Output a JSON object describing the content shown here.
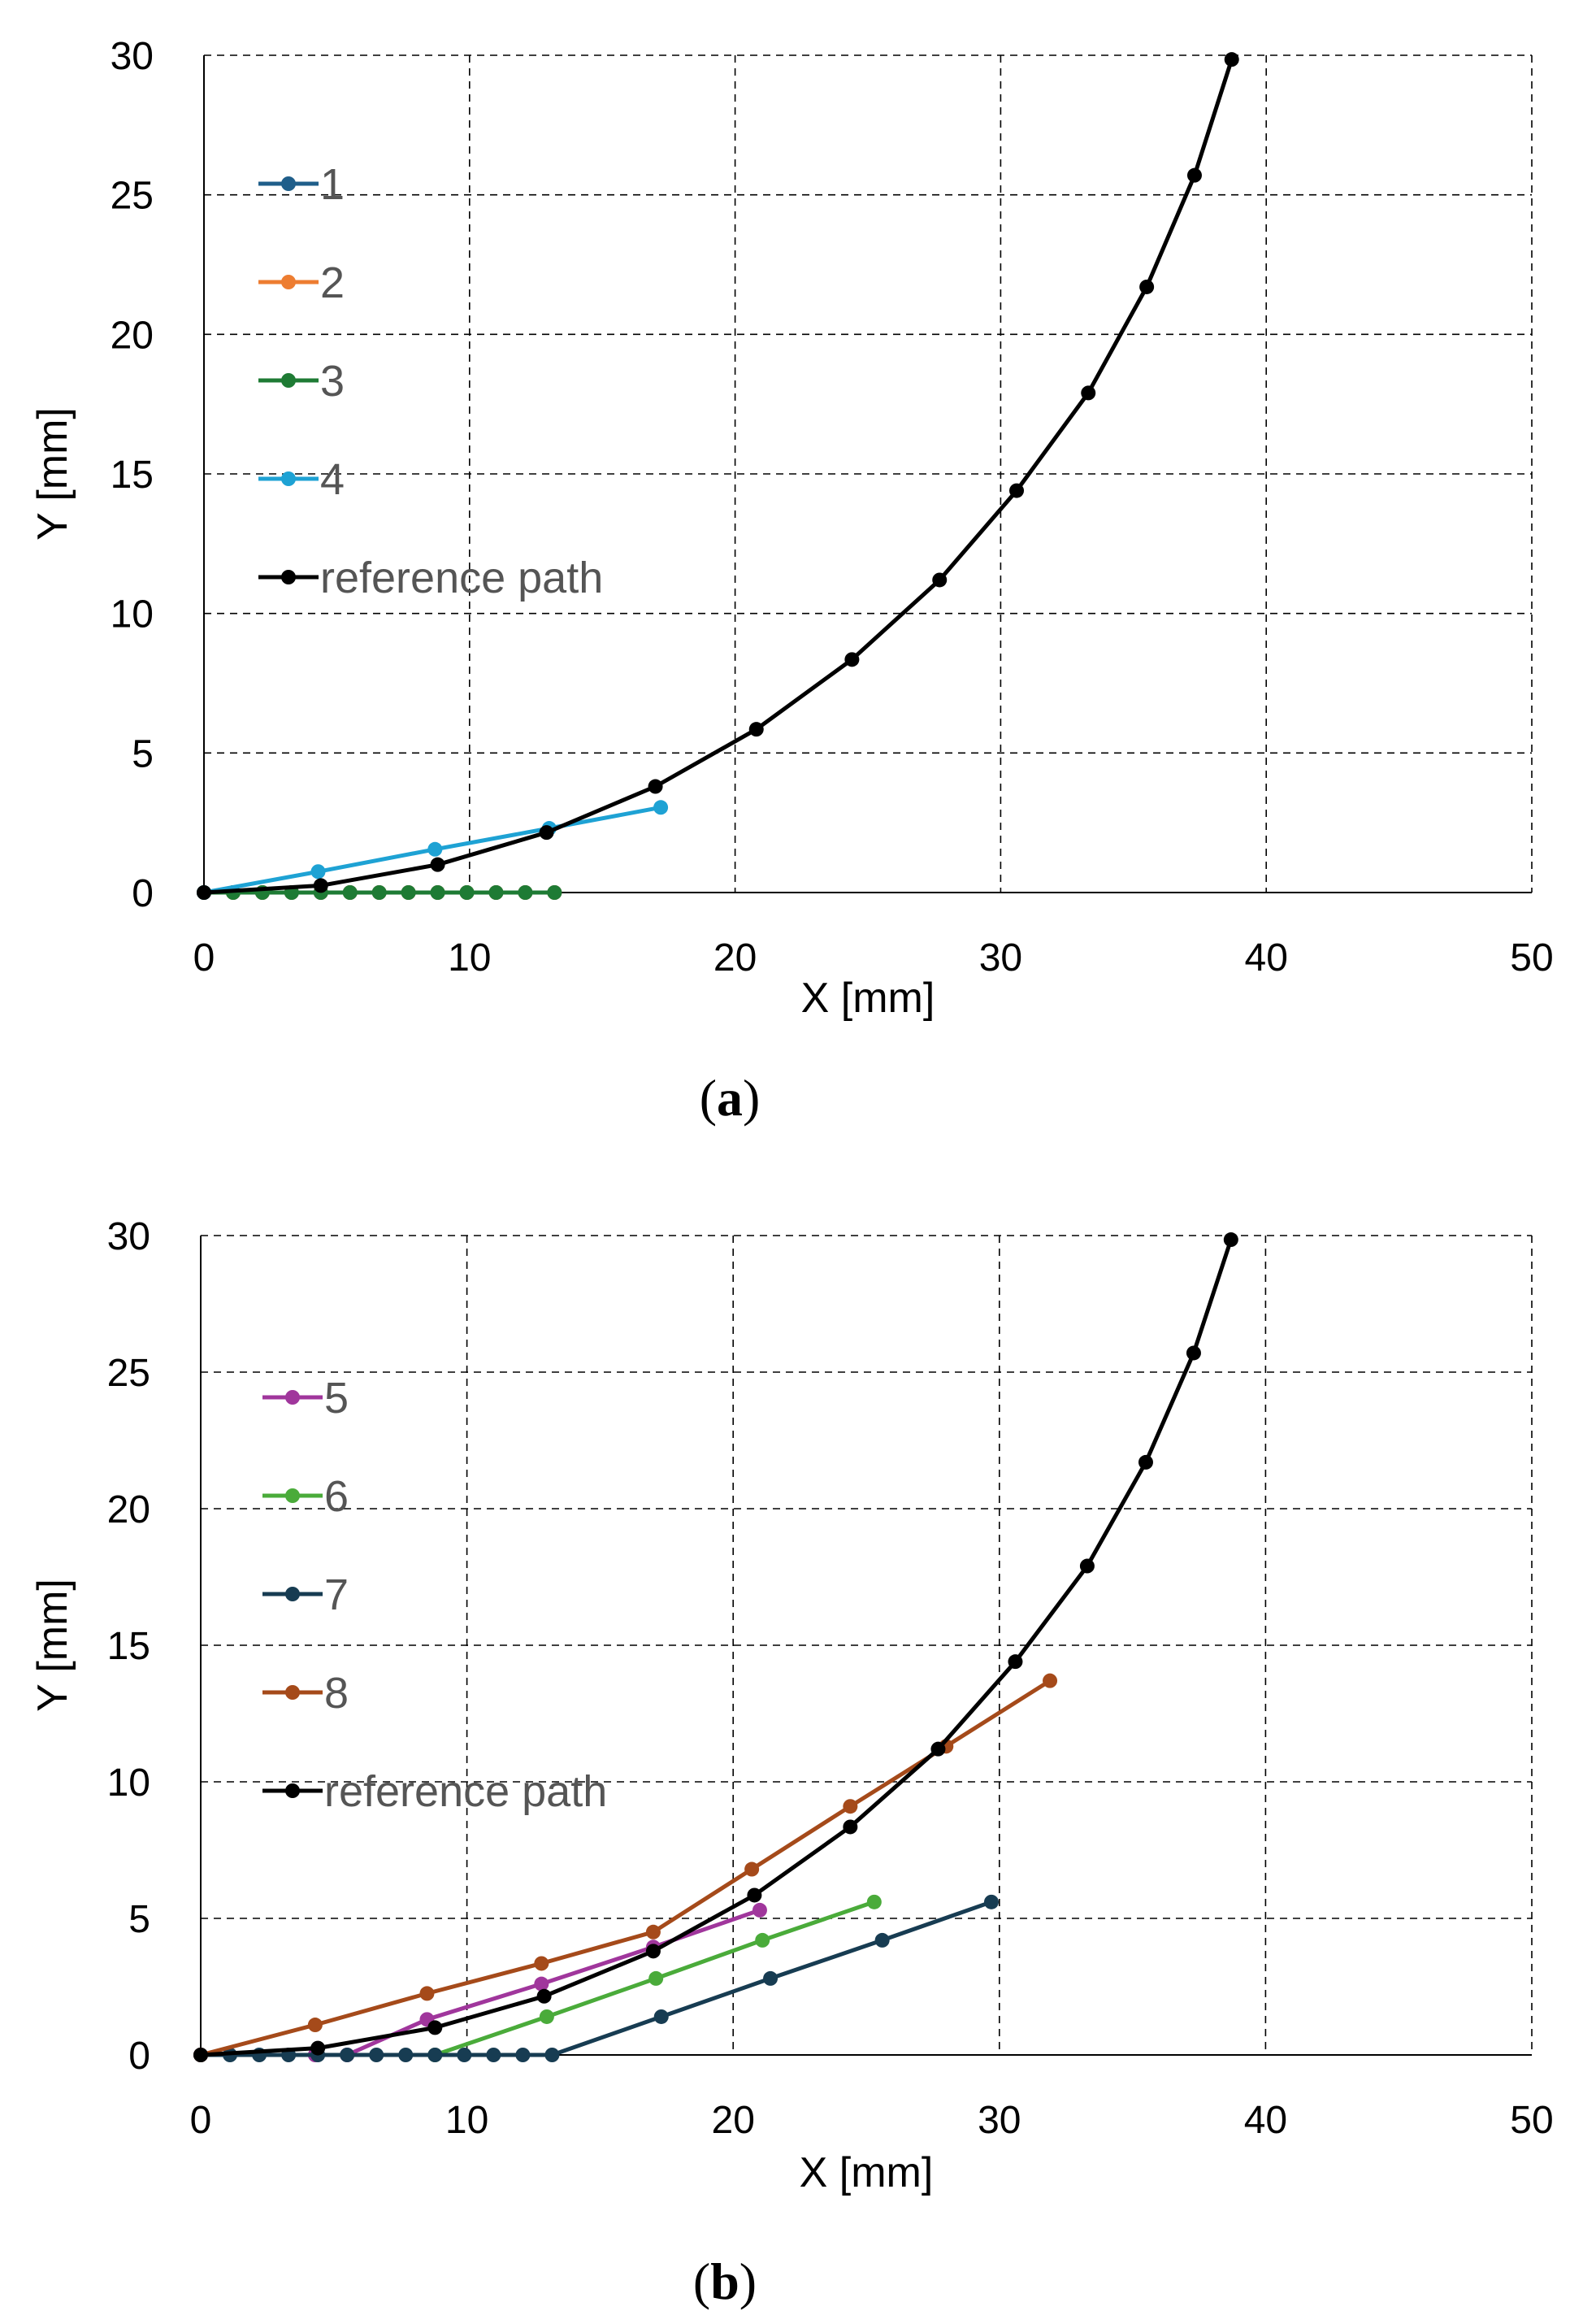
{
  "chart_data": [
    {
      "type": "line",
      "panel": "a",
      "caption": {
        "open": "(",
        "letter": "a",
        "close": ")"
      },
      "xlabel": "X [mm]",
      "ylabel": "Y [mm]",
      "xlim": [
        0,
        50
      ],
      "ylim": [
        0,
        30
      ],
      "xticks": [
        0,
        10,
        20,
        30,
        40,
        50
      ],
      "yticks": [
        0,
        5,
        10,
        15,
        20,
        25,
        30
      ],
      "grid": true,
      "legend_position": "top-left",
      "series": [
        {
          "name": "1",
          "color": "#1f5e8a",
          "x": [
            0,
            1.1,
            2.2,
            3.3,
            4.4,
            5.5,
            6.6,
            7.7,
            8.8,
            9.9,
            11.0,
            12.1,
            13.2
          ],
          "y": [
            0,
            0,
            0,
            0,
            0,
            0,
            0,
            0,
            0,
            0,
            0,
            0,
            0
          ]
        },
        {
          "name": "2",
          "color": "#ed7d31",
          "x": [
            0,
            1.1,
            2.2,
            3.3,
            4.4,
            5.5,
            6.6,
            7.7,
            8.8,
            9.9,
            11.0,
            12.1,
            13.2
          ],
          "y": [
            0,
            0,
            0,
            0,
            0,
            0,
            0,
            0,
            0,
            0,
            0,
            0,
            0
          ]
        },
        {
          "name": "3",
          "color": "#1e7b34",
          "x": [
            0,
            1.1,
            2.2,
            3.3,
            4.4,
            5.5,
            6.6,
            7.7,
            8.8,
            9.9,
            11.0,
            12.1,
            13.2
          ],
          "y": [
            0,
            0,
            0,
            0,
            0,
            0,
            0,
            0,
            0,
            0,
            0,
            0,
            0
          ]
        },
        {
          "name": "4",
          "color": "#1ea2d4",
          "x": [
            0,
            4.3,
            8.7,
            13.0,
            17.2
          ],
          "y": [
            0,
            0.75,
            1.55,
            2.3,
            3.05
          ]
        },
        {
          "name": "reference path",
          "color": "#000000",
          "x": [
            0,
            4.4,
            8.8,
            12.9,
            17.0,
            20.8,
            24.4,
            27.7,
            30.6,
            33.3,
            35.5,
            37.3,
            38.7
          ],
          "y": [
            0,
            0.25,
            1.0,
            2.15,
            3.8,
            5.85,
            8.35,
            11.2,
            14.4,
            17.9,
            21.7,
            25.7,
            29.85
          ]
        }
      ]
    },
    {
      "type": "line",
      "panel": "b",
      "caption": {
        "open": "(",
        "letter": "b",
        "close": ")"
      },
      "xlabel": "X [mm]",
      "ylabel": "Y [mm]",
      "xlim": [
        0,
        50
      ],
      "ylim": [
        0,
        30
      ],
      "xticks": [
        0,
        10,
        20,
        30,
        40,
        50
      ],
      "yticks": [
        0,
        5,
        10,
        15,
        20,
        25,
        30
      ],
      "grid": true,
      "legend_position": "top-left",
      "series": [
        {
          "name": "5",
          "color": "#a0369c",
          "x": [
            0,
            4.3,
            5.5,
            8.5,
            12.8,
            17.0,
            21.0
          ],
          "y": [
            0,
            0,
            0,
            1.3,
            2.6,
            3.95,
            5.3
          ]
        },
        {
          "name": "6",
          "color": "#4aab3a",
          "x": [
            8.8,
            13.0,
            17.1,
            21.1,
            25.3
          ],
          "y": [
            0,
            1.4,
            2.8,
            4.2,
            5.6
          ]
        },
        {
          "name": "7",
          "color": "#173c52",
          "x": [
            0,
            1.1,
            2.2,
            3.3,
            4.4,
            5.5,
            6.6,
            7.7,
            8.8,
            9.9,
            11.0,
            12.1,
            13.2,
            17.3,
            21.4,
            25.6,
            29.7
          ],
          "y": [
            0,
            0,
            0,
            0,
            0,
            0,
            0,
            0,
            0,
            0,
            0,
            0,
            0,
            1.4,
            2.8,
            4.2,
            5.6
          ]
        },
        {
          "name": "8",
          "color": "#a54a1a",
          "x": [
            0,
            4.3,
            8.5,
            12.8,
            17.0,
            20.7,
            24.4,
            28.0,
            31.9
          ],
          "y": [
            0,
            1.1,
            2.25,
            3.35,
            4.5,
            6.8,
            9.1,
            11.3,
            13.7
          ]
        },
        {
          "name": "reference path",
          "color": "#000000",
          "x": [
            0,
            4.4,
            8.8,
            12.9,
            17.0,
            20.8,
            24.4,
            27.7,
            30.6,
            33.3,
            35.5,
            37.3,
            38.7
          ],
          "y": [
            0,
            0.25,
            1.0,
            2.15,
            3.8,
            5.85,
            8.35,
            11.2,
            14.4,
            17.9,
            21.7,
            25.7,
            29.85
          ]
        }
      ]
    }
  ]
}
